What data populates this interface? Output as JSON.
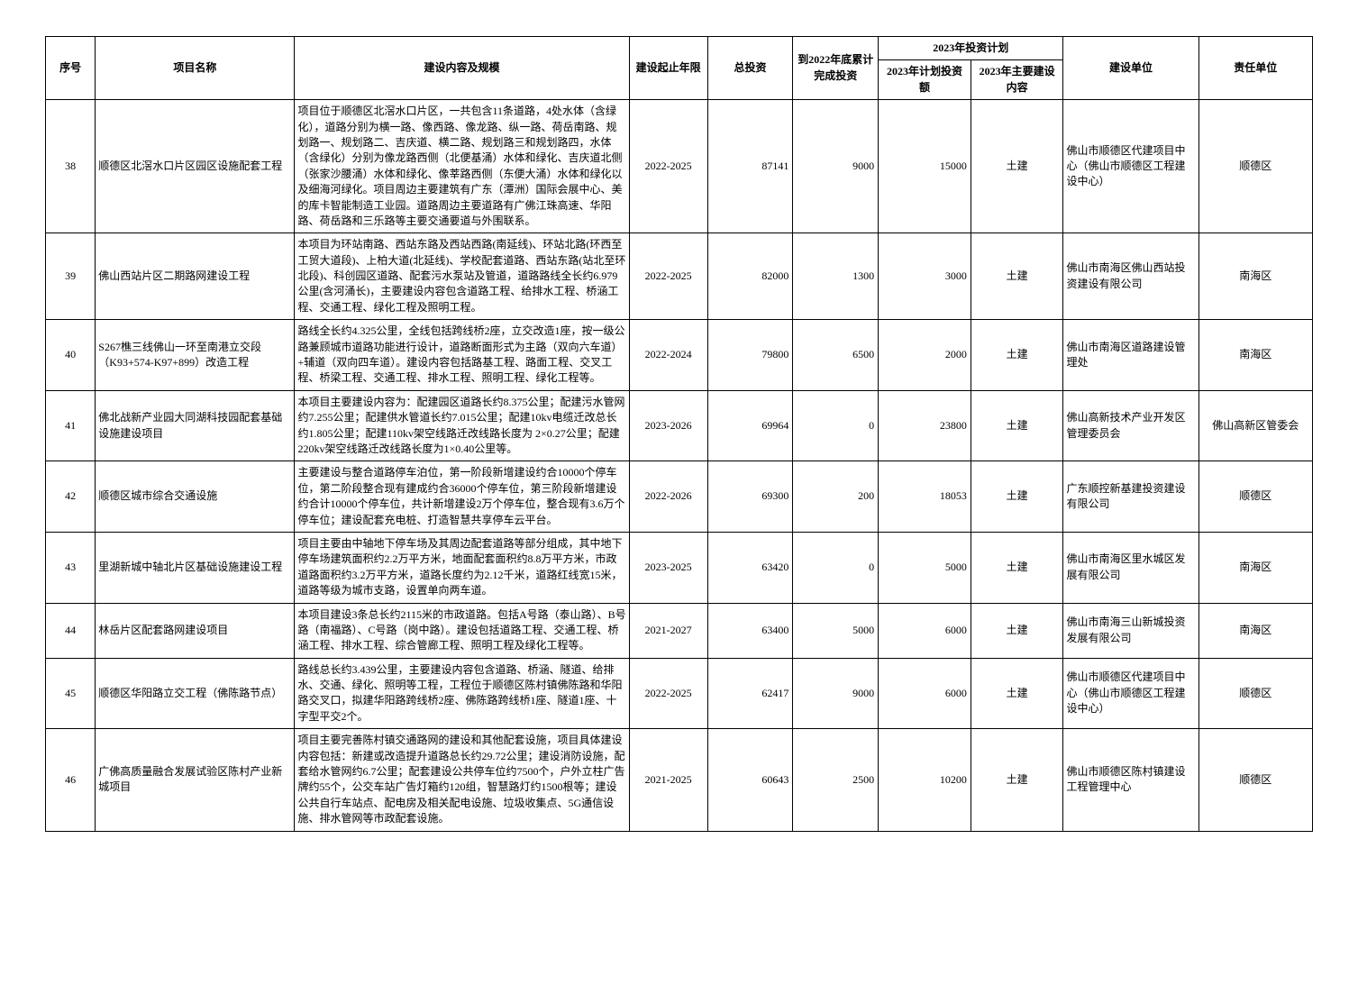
{
  "headers": {
    "seq": "序号",
    "name": "项目名称",
    "content": "建设内容及规模",
    "years": "建设起止年限",
    "total": "总投资",
    "acc": "到2022年底累计完成投资",
    "plan_group": "2023年投资计划",
    "plan_amt": "2023年计划投资额",
    "plan_cont": "2023年主要建设内容",
    "build_unit": "建设单位",
    "resp_unit": "责任单位"
  },
  "rows": [
    {
      "seq": "38",
      "name": "顺德区北滘水口片区园区设施配套工程",
      "content": "项目位于顺德区北滘水口片区，一共包含11条道路，4处水体（含绿化），道路分别为横一路、像西路、像龙路、纵一路、荷岳南路、规划路一、规划路二、吉庆道、横二路、规划路三和规划路四，水体（含绿化）分别为像龙路西侧（北便基涌）水体和绿化、吉庆道北侧（张家沙腰涌）水体和绿化、像莘路西侧（东便大涌）水体和绿化以及细海河绿化。项目周边主要建筑有广东（潭洲）国际会展中心、美的库卡智能制造工业园。道路周边主要道路有广佛江珠高速、华阳路、荷岳路和三乐路等主要交通要道与外围联系。",
      "years": "2022-2025",
      "total": "87141",
      "acc": "9000",
      "plan_amt": "15000",
      "plan_cont": "土建",
      "build_unit": "佛山市顺德区代建项目中心（佛山市顺德区工程建设中心）",
      "resp_unit": "顺德区"
    },
    {
      "seq": "39",
      "name": "佛山西站片区二期路网建设工程",
      "content": "本项目为环站南路、西站东路及西站西路(南延线)、环站北路(环西至工贸大道段)、上柏大道(北延线)、学校配套道路、西站东路(站北至环北段)、科创园区道路、配套污水泵站及管道，道路路线全长约6.979公里(含河涌长)，主要建设内容包含道路工程、给排水工程、桥涵工程、交通工程、绿化工程及照明工程。",
      "years": "2022-2025",
      "total": "82000",
      "acc": "1300",
      "plan_amt": "3000",
      "plan_cont": "土建",
      "build_unit": "佛山市南海区佛山西站投资建设有限公司",
      "resp_unit": "南海区"
    },
    {
      "seq": "40",
      "name": "S267樵三线佛山一环至南港立交段（K93+574-K97+899）改造工程",
      "content": "路线全长约4.325公里，全线包括跨线桥2座，立交改造1座，按一级公路兼顾城市道路功能进行设计，道路断面形式为主路（双向六车道）+辅道（双向四车道）。建设内容包括路基工程、路面工程、交叉工程、桥梁工程、交通工程、排水工程、照明工程、绿化工程等。",
      "years": "2022-2024",
      "total": "79800",
      "acc": "6500",
      "plan_amt": "2000",
      "plan_cont": "土建",
      "build_unit": "佛山市南海区道路建设管理处",
      "resp_unit": "南海区"
    },
    {
      "seq": "41",
      "name": "佛北战新产业园大同湖科技园配套基础设施建设项目",
      "content": "本项目主要建设内容为：配建园区道路长约8.375公里；配建污水管网约7.255公里；配建供水管道长约7.015公里；配建10kv电缆迁改总长约1.805公里；配建110kv架空线路迁改线路长度为 2×0.27公里；配建220kv架空线路迁改线路长度为1×0.40公里等。",
      "years": "2023-2026",
      "total": "69964",
      "acc": "0",
      "plan_amt": "23800",
      "plan_cont": "土建",
      "build_unit": "佛山高新技术产业开发区管理委员会",
      "resp_unit": "佛山高新区管委会"
    },
    {
      "seq": "42",
      "name": "顺德区城市综合交通设施",
      "content": "主要建设与整合道路停车泊位，第一阶段新增建设约合10000个停车位，第二阶段整合现有建成约合36000个停车位，第三阶段新增建设约合计10000个停车位，共计新增建设2万个停车位，整合现有3.6万个停车位；建设配套充电桩、打造智慧共享停车云平台。",
      "years": "2022-2026",
      "total": "69300",
      "acc": "200",
      "plan_amt": "18053",
      "plan_cont": "土建",
      "build_unit": "广东顺控新基建投资建设有限公司",
      "resp_unit": "顺德区"
    },
    {
      "seq": "43",
      "name": "里湖新城中轴北片区基础设施建设工程",
      "content": "项目主要由中轴地下停车场及其周边配套道路等部分组成，其中地下停车场建筑面积约2.2万平方米，地面配套面积约8.8万平方米，市政道路面积约3.2万平方米，道路长度约为2.12千米，道路红线宽15米，道路等级为城市支路，设置单向两车道。",
      "years": "2023-2025",
      "total": "63420",
      "acc": "0",
      "plan_amt": "5000",
      "plan_cont": "土建",
      "build_unit": "佛山市南海区里水城区发展有限公司",
      "resp_unit": "南海区"
    },
    {
      "seq": "44",
      "name": "林岳片区配套路网建设项目",
      "content": "本项目建设3条总长约2115米的市政道路。包括A号路（泰山路）、B号路（南福路）、C号路（岗中路）。建设包括道路工程、交通工程、桥涵工程、排水工程、综合管廊工程、照明工程及绿化工程等。",
      "years": "2021-2027",
      "total": "63400",
      "acc": "5000",
      "plan_amt": "6000",
      "plan_cont": "土建",
      "build_unit": "佛山市南海三山新城投资发展有限公司",
      "resp_unit": "南海区"
    },
    {
      "seq": "45",
      "name": "顺德区华阳路立交工程（佛陈路节点）",
      "content": "路线总长约3.439公里，主要建设内容包含道路、桥涵、隧道、给排水、交通、绿化、照明等工程，工程位于顺德区陈村镇佛陈路和华阳路交叉口，拟建华阳路跨线桥2座、佛陈路跨线桥1座、隧道1座、十字型平交2个。",
      "years": "2022-2025",
      "total": "62417",
      "acc": "9000",
      "plan_amt": "6000",
      "plan_cont": "土建",
      "build_unit": "佛山市顺德区代建项目中心（佛山市顺德区工程建设中心）",
      "resp_unit": "顺德区"
    },
    {
      "seq": "46",
      "name": "广佛高质量融合发展试验区陈村产业新城项目",
      "content": "项目主要完善陈村镇交通路网的建设和其他配套设施，项目具体建设内容包括：新建或改造提升道路总长约29.72公里；建设消防设施，配套给水管网约6.7公里；配套建设公共停车位约7500个，户外立柱广告牌约55个，公交车站广告灯箱约120组，智慧路灯约1500根等；建设公共自行车站点、配电房及相关配电设施、垃圾收集点、5G通信设施、排水管网等市政配套设施。",
      "years": "2021-2025",
      "total": "60643",
      "acc": "2500",
      "plan_amt": "10200",
      "plan_cont": "土建",
      "build_unit": "佛山市顺德区陈村镇建设工程管理中心",
      "resp_unit": "顺德区"
    }
  ]
}
